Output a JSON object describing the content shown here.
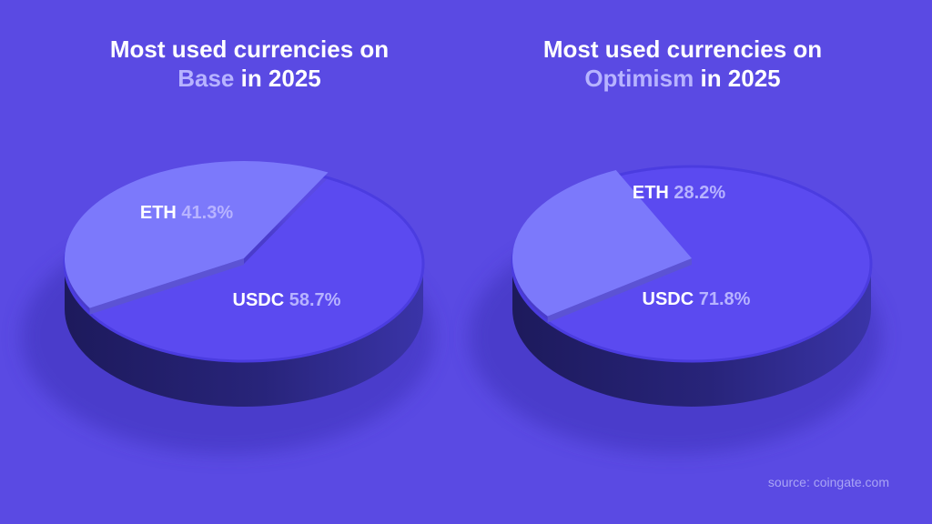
{
  "chart_data": [
    {
      "type": "pie",
      "title_line1": "Most used currencies on",
      "title_highlight": "Base",
      "title_suffix": " in 2025",
      "slices": [
        {
          "name": "ETH",
          "pct_label": "41.3%",
          "value": 41.3
        },
        {
          "name": "USDC",
          "pct_label": "58.7%",
          "value": 58.7
        }
      ]
    },
    {
      "type": "pie",
      "title_line1": "Most used currencies on",
      "title_highlight": "Optimism",
      "title_suffix": " in 2025",
      "slices": [
        {
          "name": "ETH",
          "pct_label": "28.2%",
          "value": 28.2
        },
        {
          "name": "USDC",
          "pct_label": "71.8%",
          "value": 71.8
        }
      ]
    }
  ],
  "colors": {
    "background": "#5a4ae3",
    "usdc_top": "#5b4af0",
    "eth_top": "#7c79fb",
    "side": "#24216e",
    "label": "#ffffff",
    "pct": "#b7b3ff"
  },
  "source": "source: coingate.com"
}
